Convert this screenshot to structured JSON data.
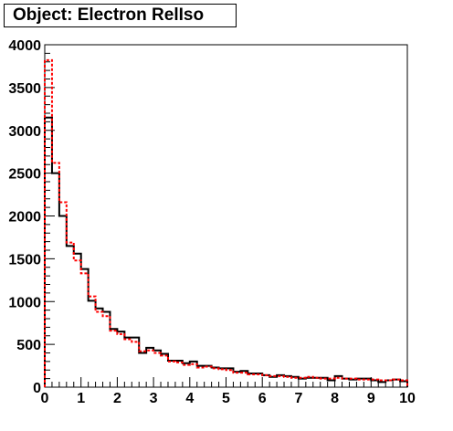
{
  "title": "Object: Electron RelIso",
  "chart_data": {
    "type": "histogram",
    "title": "Object: Electron RelIso",
    "xlabel": "",
    "ylabel": "",
    "xlim": [
      0,
      10
    ],
    "ylim": [
      0,
      4000
    ],
    "x_ticks": [
      "0",
      "1",
      "2",
      "3",
      "4",
      "5",
      "6",
      "7",
      "8",
      "9",
      "10"
    ],
    "y_ticks": [
      "0",
      "500",
      "1000",
      "1500",
      "2000",
      "2500",
      "3000",
      "3500",
      "4000"
    ],
    "bin_width": 0.2,
    "series": [
      {
        "color": "#000000",
        "style": "solid",
        "values": [
          3150,
          2500,
          2000,
          1650,
          1560,
          1380,
          1010,
          920,
          880,
          680,
          650,
          580,
          580,
          400,
          460,
          430,
          390,
          310,
          310,
          280,
          300,
          250,
          250,
          230,
          220,
          220,
          180,
          190,
          160,
          160,
          140,
          120,
          140,
          130,
          120,
          100,
          110,
          110,
          110,
          80,
          130,
          100,
          90,
          100,
          100,
          80,
          60,
          80,
          90,
          70
        ]
      },
      {
        "color": "#ff0000",
        "style": "dashed",
        "values": [
          3820,
          2620,
          2160,
          1690,
          1480,
          1330,
          1060,
          880,
          830,
          660,
          620,
          560,
          530,
          420,
          430,
          400,
          370,
          300,
          290,
          260,
          270,
          230,
          240,
          220,
          210,
          200,
          170,
          170,
          150,
          150,
          140,
          130,
          130,
          120,
          110,
          110,
          120,
          110,
          100,
          100,
          110,
          100,
          100,
          90,
          90,
          90,
          80,
          80,
          90,
          80
        ]
      }
    ]
  }
}
